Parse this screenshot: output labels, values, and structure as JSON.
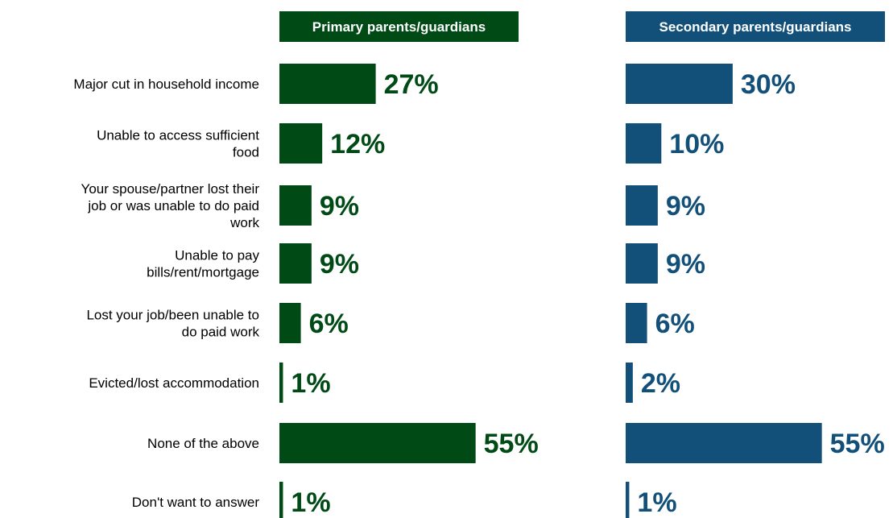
{
  "chart_data": {
    "type": "bar",
    "orientation": "horizontal",
    "categories": [
      "Major cut in household income",
      "Unable to access sufficient food",
      "Your spouse/partner lost their job or was unable to do paid work",
      "Unable to pay bills/rent/mortgage",
      "Lost your job/been unable to do paid work",
      "Evicted/lost accommodation",
      "None of the above",
      "Don't want to answer"
    ],
    "category_lines": [
      [
        "Major cut in household income"
      ],
      [
        "Unable to access sufficient",
        "food"
      ],
      [
        "Your spouse/partner lost their",
        "job or was unable to do paid",
        "work"
      ],
      [
        "Unable to pay",
        "bills/rent/mortgage"
      ],
      [
        "Lost your job/been unable to",
        "do paid work"
      ],
      [
        "Evicted/lost accommodation"
      ],
      [
        "None of the above"
      ],
      [
        "Don't want to answer"
      ]
    ],
    "series": [
      {
        "name": "Primary parents/guardians",
        "color": "#004a16",
        "values": [
          27,
          12,
          9,
          9,
          6,
          1,
          55,
          1
        ],
        "labels": [
          "27%",
          "12%",
          "9%",
          "9%",
          "6%",
          "1%",
          "55%",
          "1%"
        ]
      },
      {
        "name": "Secondary parents/guardians",
        "color": "#12507a",
        "values": [
          30,
          10,
          9,
          9,
          6,
          2,
          55,
          1
        ],
        "labels": [
          "30%",
          "10%",
          "9%",
          "9%",
          "6%",
          "2%",
          "55%",
          "1%"
        ]
      }
    ],
    "xlim": [
      0,
      100
    ],
    "grid": false,
    "legend": "panel headers"
  }
}
